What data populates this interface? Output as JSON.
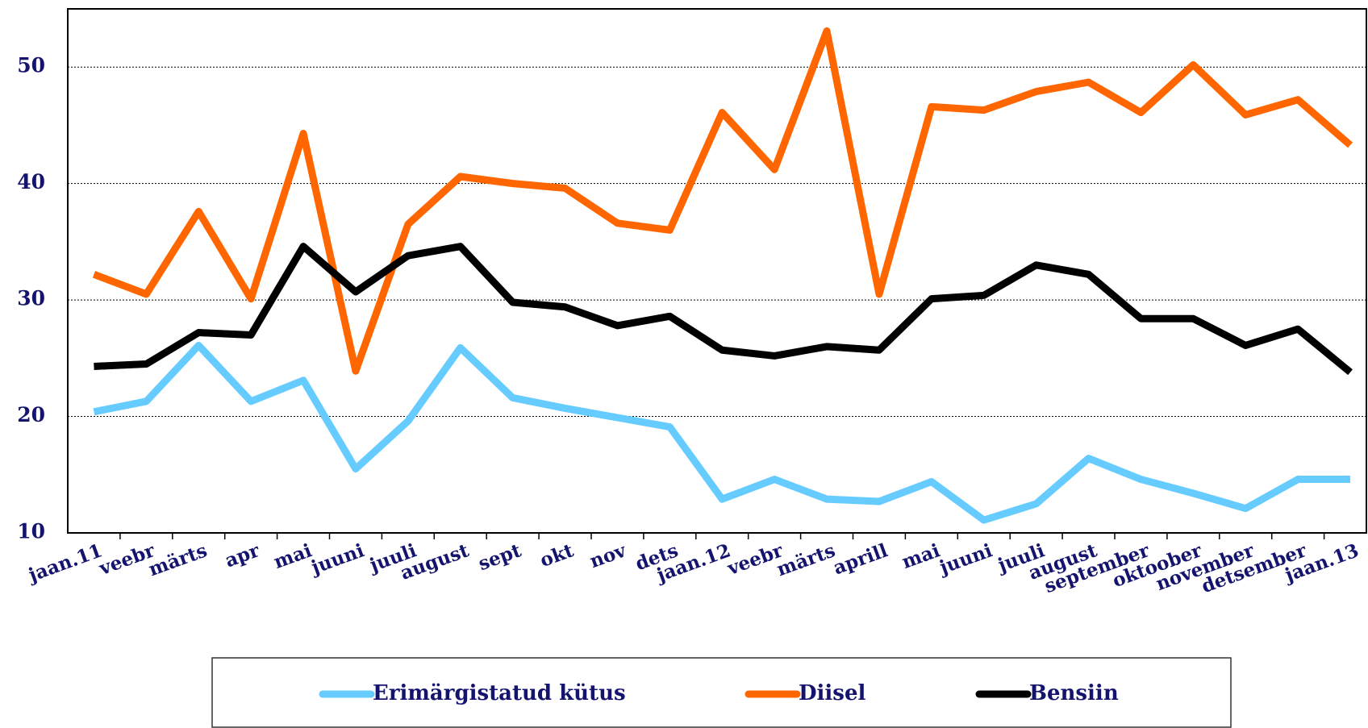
{
  "chart_data": {
    "type": "line",
    "categories": [
      "jaan.11",
      "veebr",
      "märts",
      "apr",
      "mai",
      "juuni",
      "juuli",
      "august",
      "sept",
      "okt",
      "nov",
      "dets",
      "jaan.12",
      "veebr",
      "märts",
      "aprill",
      "mai",
      "juuni",
      "juuli",
      "august",
      "september",
      "oktoober",
      "november",
      "detsember",
      "jaan.13"
    ],
    "series": [
      {
        "name": "Erimärgistatud kütus",
        "color": "#66ccff",
        "values": [
          20.4,
          21.3,
          26.1,
          21.3,
          23.1,
          15.5,
          19.6,
          25.9,
          21.6,
          20.7,
          19.9,
          19.1,
          12.9,
          14.6,
          12.9,
          12.7,
          14.4,
          11.1,
          12.5,
          16.4,
          14.6,
          13.4,
          12.1,
          14.6,
          14.6
        ]
      },
      {
        "name": "Diisel",
        "color": "#ff6600",
        "values": [
          32.2,
          30.5,
          37.6,
          30.1,
          44.3,
          23.9,
          36.5,
          40.6,
          40.0,
          39.6,
          36.6,
          36.0,
          46.1,
          41.2,
          53.1,
          30.5,
          46.6,
          46.3,
          47.9,
          48.7,
          46.1,
          50.2,
          45.9,
          47.2,
          43.3
        ]
      },
      {
        "name": "Bensiin",
        "color": "#000000",
        "values": [
          24.3,
          24.5,
          27.2,
          27.0,
          34.6,
          30.7,
          33.8,
          34.6,
          29.8,
          29.4,
          27.8,
          28.6,
          25.7,
          25.2,
          26.0,
          25.7,
          30.1,
          30.4,
          33.0,
          32.2,
          28.4,
          28.4,
          26.1,
          27.5,
          23.8
        ]
      }
    ],
    "ylim": [
      10,
      55
    ],
    "yticks": [
      10,
      20,
      30,
      40,
      50
    ],
    "grid": true,
    "legend": "bottom"
  }
}
